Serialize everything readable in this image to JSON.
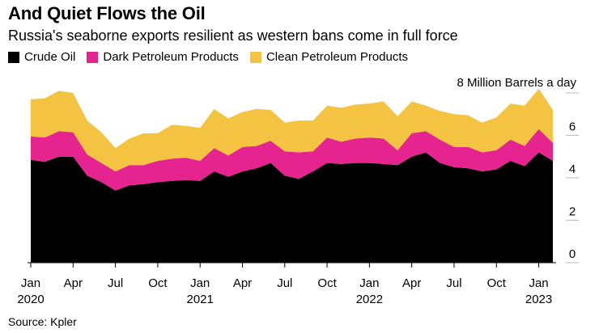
{
  "title": "And Quiet Flows the Oil",
  "subtitle": "Russia's seaborne exports resilient as western bans come in full force",
  "source": "Source: Kpler",
  "chart_data": {
    "type": "area",
    "stacked": true,
    "unit_label": "8 Million Barrels a day",
    "y_ticks": [
      "0",
      "2",
      "4",
      "6"
    ],
    "ylim": [
      0,
      8
    ],
    "x_ticks": [
      {
        "label": "Jan",
        "year": "2020",
        "date": "2020-01"
      },
      {
        "label": "Apr",
        "year": "",
        "date": "2020-04"
      },
      {
        "label": "Jul",
        "year": "",
        "date": "2020-07"
      },
      {
        "label": "Oct",
        "year": "",
        "date": "2020-10"
      },
      {
        "label": "Jan",
        "year": "2021",
        "date": "2021-01"
      },
      {
        "label": "Apr",
        "year": "",
        "date": "2021-04"
      },
      {
        "label": "Jul",
        "year": "",
        "date": "2021-07"
      },
      {
        "label": "Oct",
        "year": "",
        "date": "2021-10"
      },
      {
        "label": "Jan",
        "year": "2022",
        "date": "2022-01"
      },
      {
        "label": "Apr",
        "year": "",
        "date": "2022-04"
      },
      {
        "label": "Jul",
        "year": "",
        "date": "2022-07"
      },
      {
        "label": "Oct",
        "year": "",
        "date": "2022-10"
      },
      {
        "label": "Jan",
        "year": "2023",
        "date": "2023-01"
      }
    ],
    "x": [
      "2020-01",
      "2020-02",
      "2020-03",
      "2020-04",
      "2020-05",
      "2020-06",
      "2020-07",
      "2020-08",
      "2020-09",
      "2020-10",
      "2020-11",
      "2020-12",
      "2021-01",
      "2021-02",
      "2021-03",
      "2021-04",
      "2021-05",
      "2021-06",
      "2021-07",
      "2021-08",
      "2021-09",
      "2021-10",
      "2021-11",
      "2021-12",
      "2022-01",
      "2022-02",
      "2022-03",
      "2022-04",
      "2022-05",
      "2022-06",
      "2022-07",
      "2022-08",
      "2022-09",
      "2022-10",
      "2022-11",
      "2022-12",
      "2023-01",
      "2023-02"
    ],
    "series": [
      {
        "name": "Crude Oil",
        "color": "#000000",
        "values": [
          4.85,
          4.75,
          5.0,
          5.0,
          4.1,
          3.8,
          3.4,
          3.65,
          3.7,
          3.8,
          3.85,
          3.9,
          3.85,
          4.3,
          4.05,
          4.3,
          4.45,
          4.7,
          4.1,
          3.95,
          4.3,
          4.7,
          4.65,
          4.7,
          4.7,
          4.65,
          4.6,
          5.0,
          5.2,
          4.7,
          4.5,
          4.45,
          4.3,
          4.4,
          4.8,
          4.55,
          5.2,
          4.8
        ]
      },
      {
        "name": "Dark Petroleum Products",
        "color": "#e5248f",
        "values": [
          1.1,
          1.15,
          1.2,
          1.15,
          1.0,
          0.9,
          0.9,
          0.95,
          0.9,
          1.0,
          1.05,
          1.05,
          0.95,
          1.1,
          1.0,
          1.15,
          1.05,
          1.05,
          1.15,
          1.25,
          0.95,
          1.2,
          1.05,
          1.15,
          1.2,
          1.2,
          0.7,
          1.1,
          1.0,
          1.1,
          0.95,
          1.0,
          0.9,
          0.9,
          1.0,
          0.95,
          1.1,
          0.85
        ]
      },
      {
        "name": "Clean Petroleum Products",
        "color": "#f5c342",
        "values": [
          1.75,
          1.85,
          1.9,
          1.85,
          1.6,
          1.45,
          1.1,
          1.25,
          1.5,
          1.3,
          1.6,
          1.5,
          1.55,
          1.85,
          1.75,
          1.65,
          1.75,
          1.45,
          1.35,
          1.5,
          1.45,
          1.5,
          1.6,
          1.6,
          1.6,
          1.75,
          1.6,
          1.5,
          1.2,
          1.35,
          1.55,
          1.5,
          1.4,
          1.55,
          1.7,
          1.9,
          1.9,
          1.55
        ]
      }
    ]
  }
}
